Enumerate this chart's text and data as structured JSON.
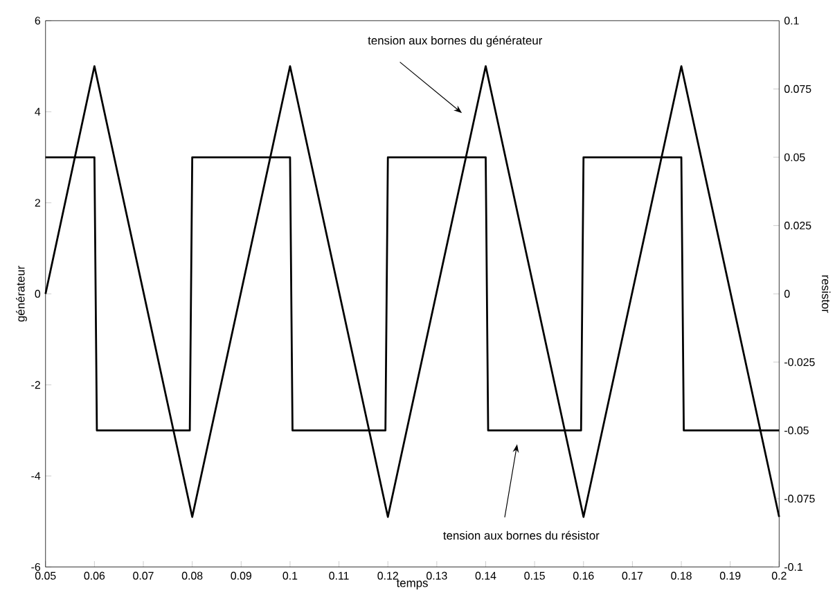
{
  "chart_data": {
    "type": "line",
    "xlabel": "temps",
    "ylabel": "générateur",
    "y2label": "resistor",
    "annotations": [
      "tension aux bornes du générateur",
      "tension aux bornes du résistor"
    ],
    "xlim": [
      0.05,
      0.2
    ],
    "xticks": [
      0.05,
      0.06,
      0.07,
      0.08,
      0.09,
      0.1,
      0.11,
      0.12,
      0.13,
      0.14,
      0.15,
      0.16,
      0.17,
      0.18,
      0.19,
      0.2
    ],
    "ylim": [
      -6,
      6
    ],
    "yticks": [
      -6,
      -4,
      -2,
      0,
      2,
      4,
      6
    ],
    "y2lim": [
      -0.1,
      0.1
    ],
    "y2ticks": [
      -0.1,
      -0.075,
      -0.05,
      -0.025,
      0,
      0.025,
      0.05,
      0.075,
      0.1
    ],
    "grid": false,
    "marker": "none",
    "line_style": "solid",
    "series": [
      {
        "color": "#000000",
        "x": [
          0.05,
          0.06,
          0.08,
          0.1,
          0.12,
          0.14,
          0.16,
          0.18,
          0.2
        ],
        "values": [
          0,
          5,
          -4.9,
          5,
          -4.9,
          5,
          -4.9,
          5,
          -4.9
        ]
      },
      {
        "color": "#000000",
        "axis": "y2",
        "x": [
          0.05,
          0.06,
          0.0605,
          0.0795,
          0.08,
          0.1,
          0.1005,
          0.1195,
          0.12,
          0.14,
          0.1405,
          0.1595,
          0.16,
          0.18,
          0.1805,
          0.2
        ],
        "values": [
          0.05,
          0.05,
          -0.05,
          -0.05,
          0.05,
          0.05,
          -0.05,
          -0.05,
          0.05,
          0.05,
          -0.05,
          -0.05,
          0.05,
          0.05,
          -0.05,
          -0.05
        ]
      }
    ]
  }
}
